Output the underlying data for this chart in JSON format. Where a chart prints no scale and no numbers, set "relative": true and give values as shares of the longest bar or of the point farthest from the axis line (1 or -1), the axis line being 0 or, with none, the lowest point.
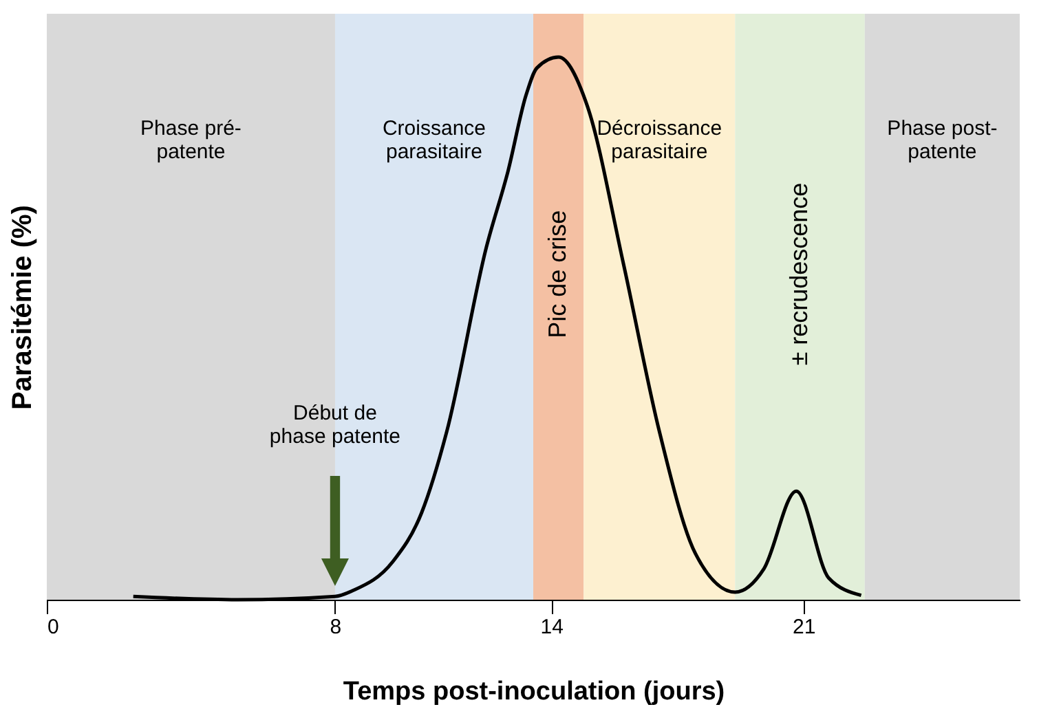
{
  "chart_data": {
    "type": "line",
    "relative": true,
    "xlabel": "Temps post-inoculation (jours)",
    "ylabel": "Parasitémie (%)",
    "x": [
      2.4,
      5.3,
      8,
      8.5,
      9.6,
      10.4,
      11.1,
      12.2,
      12.8,
      13.3,
      13.6,
      14.2,
      15.0,
      16.0,
      17.0,
      18.0,
      19.1,
      19.9,
      20.8,
      21.7,
      22.6
    ],
    "series": [
      {
        "color": "#000000",
        "values": [
          0.006,
          0,
          0.006,
          0.017,
          0.07,
          0.16,
          0.31,
          0.65,
          0.79,
          0.93,
          0.98,
          1.0,
          0.91,
          0.62,
          0.31,
          0.085,
          0.014,
          0.057,
          0.2,
          0.04,
          0.008
        ]
      }
    ],
    "xlim": [
      0,
      27
    ],
    "xticks": [
      0,
      8,
      14,
      21
    ],
    "bands": [
      {
        "axis": "x",
        "from": 0,
        "to": 8,
        "label": "Phase pré-\npatente",
        "color": "#d9d9d9"
      },
      {
        "axis": "x",
        "from": 8,
        "to": 13.5,
        "label": "Croissance\nparasitaire",
        "color": "#dae6f3"
      },
      {
        "axis": "x",
        "from": 13.5,
        "to": 14.9,
        "label": "Pic de crise",
        "color": "#f4c0a3"
      },
      {
        "axis": "x",
        "from": 14.9,
        "to": 19.1,
        "label": "Décroissance\nparasitaire",
        "color": "#fdf0d0"
      },
      {
        "axis": "x",
        "from": 19.1,
        "to": 22.7,
        "label": "± recrudescence",
        "color": "#e2efd9"
      },
      {
        "axis": "x",
        "from": 22.7,
        "to": 27,
        "label": "Phase post-\npatente",
        "color": "#d9d9d9"
      }
    ],
    "annotations": [
      "Début de\nphase patente"
    ],
    "grid": false,
    "line_style": "solid",
    "marker": "none"
  }
}
